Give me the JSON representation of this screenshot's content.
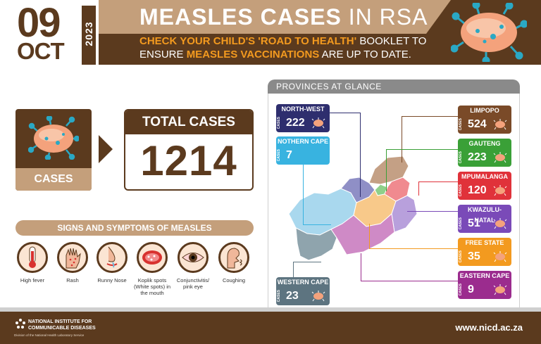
{
  "header": {
    "day": "09",
    "month": "OCT",
    "year": "2023",
    "title_bold": "MEASLES CASES",
    "title_thin": "IN RSA",
    "sub1_a": "CHECK YOUR CHILD'S 'ROAD TO HEALTH'",
    "sub1_b": "BOOKLET TO",
    "sub2_a": "ENSURE",
    "sub2_b": "MEASLES VACCINATIONS",
    "sub2_c": "ARE UP TO DATE."
  },
  "cases": {
    "label": "CASES",
    "total_label": "TOTAL CASES",
    "total_value": "1214"
  },
  "symptoms": {
    "heading": "SIGNS AND SYMPTOMS OF MEASLES",
    "items": [
      {
        "label": "High fever"
      },
      {
        "label": "Rash"
      },
      {
        "label": "Runny Nose"
      },
      {
        "label": "Koplik spots (White spots) in the mouth"
      },
      {
        "label": "Conjunctivitis/ pink eye"
      },
      {
        "label": "Coughing"
      }
    ]
  },
  "provinces": {
    "heading": "PROVINCES AT GLANCE",
    "cases_tag": "CASES",
    "items": [
      {
        "name": "NORTH-WEST",
        "value": "222",
        "color": "#2e2e6e"
      },
      {
        "name": "NOTHERN CAPE",
        "value": "7",
        "color": "#38b3e0"
      },
      {
        "name": "WESTERN CAPE",
        "value": "23",
        "color": "#5d7480"
      },
      {
        "name": "LIMPOPO",
        "value": "524",
        "color": "#7a4a28"
      },
      {
        "name": "GAUTENG",
        "value": "223",
        "color": "#3aa037"
      },
      {
        "name": "MPUMALANGA",
        "value": "120",
        "color": "#e0323a"
      },
      {
        "name": "KWAZULU-NATAL",
        "value": "51",
        "color": "#7a4ab8"
      },
      {
        "name": "FREE STATE",
        "value": "35",
        "color": "#f39a1f"
      },
      {
        "name": "EASTERN CAPE",
        "value": "9",
        "color": "#9b2c8e"
      }
    ]
  },
  "footer": {
    "org_line1": "NATIONAL INSTITUTE FOR",
    "org_line2": "COMMUNICABLE DISEASES",
    "org_sub": "Division of the National Health Laboratory Service",
    "url": "www.nicd.ac.za"
  },
  "colors": {
    "brown": "#5b3a1e",
    "tan": "#c49f7b",
    "orange": "#f39a1f",
    "grey": "#8a8a8a"
  },
  "icons": [
    "virus-icon",
    "thermometer-icon",
    "hand-rash-icon",
    "runny-nose-icon",
    "mouth-icon",
    "eye-icon",
    "coughing-icon",
    "nicd-logo-icon"
  ]
}
